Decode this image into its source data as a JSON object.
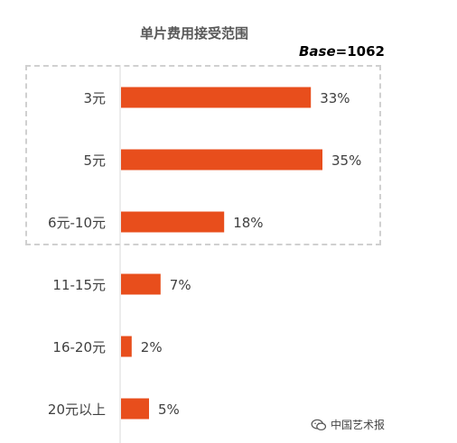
{
  "chart_data": {
    "type": "bar",
    "orientation": "horizontal",
    "title": "单片费用接受范围",
    "base_label": "Base",
    "base_value": "=1062",
    "categories": [
      "3元",
      "5元",
      "6元-10元",
      "11-15元",
      "16-20元",
      "20元以上"
    ],
    "values": [
      33,
      35,
      18,
      7,
      2,
      5
    ],
    "value_labels": [
      "33%",
      "35%",
      "18%",
      "7%",
      "2%",
      "5%"
    ],
    "xlim": [
      0,
      35
    ],
    "bar_color": "#E84E1C",
    "grid": false,
    "highlight_box": {
      "categories": [
        "3元",
        "5元",
        "6元-10元"
      ]
    }
  },
  "watermark": {
    "text": "中国艺术报",
    "icon": "wechat-icon"
  }
}
